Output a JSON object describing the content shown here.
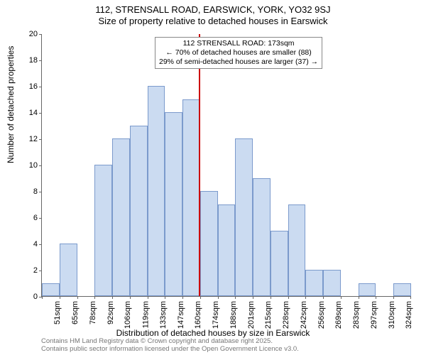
{
  "title_line1": "112, STRENSALL ROAD, EARSWICK, YORK, YO32 9SJ",
  "title_line2": "Size of property relative to detached houses in Earswick",
  "ylabel": "Number of detached properties",
  "xlabel": "Distribution of detached houses by size in Earswick",
  "footer_line1": "Contains HM Land Registry data © Crown copyright and database right 2025.",
  "footer_line2": "Contains public sector information licensed under the Open Government Licence v3.0.",
  "annotation": {
    "line1": "112 STRENSALL ROAD: 173sqm",
    "line2": "← 70% of detached houses are smaller (88)",
    "line3": "29% of semi-detached houses are larger (37) →"
  },
  "marker": {
    "x_value": 173,
    "color": "#cc0000"
  },
  "chart": {
    "type": "histogram",
    "x_start": 51,
    "bin_width": 13.65,
    "bin_count": 21,
    "xtick_labels": [
      "51sqm",
      "65sqm",
      "78sqm",
      "92sqm",
      "106sqm",
      "119sqm",
      "133sqm",
      "147sqm",
      "160sqm",
      "174sqm",
      "188sqm",
      "201sqm",
      "215sqm",
      "228sqm",
      "242sqm",
      "256sqm",
      "269sqm",
      "283sqm",
      "297sqm",
      "310sqm",
      "324sqm"
    ],
    "values": [
      1,
      4,
      0,
      10,
      12,
      13,
      16,
      14,
      15,
      8,
      7,
      12,
      9,
      5,
      7,
      2,
      2,
      0,
      1,
      0,
      1
    ],
    "ylim": [
      0,
      20
    ],
    "ytick_step": 2,
    "bar_fill": "rgba(160,190,230,0.55)",
    "bar_border": "rgba(70,110,180,0.6)",
    "axis_color": "#666666",
    "background_color": "#ffffff",
    "title_fontsize": 13,
    "label_fontsize": 12,
    "tick_fontsize": 11
  }
}
